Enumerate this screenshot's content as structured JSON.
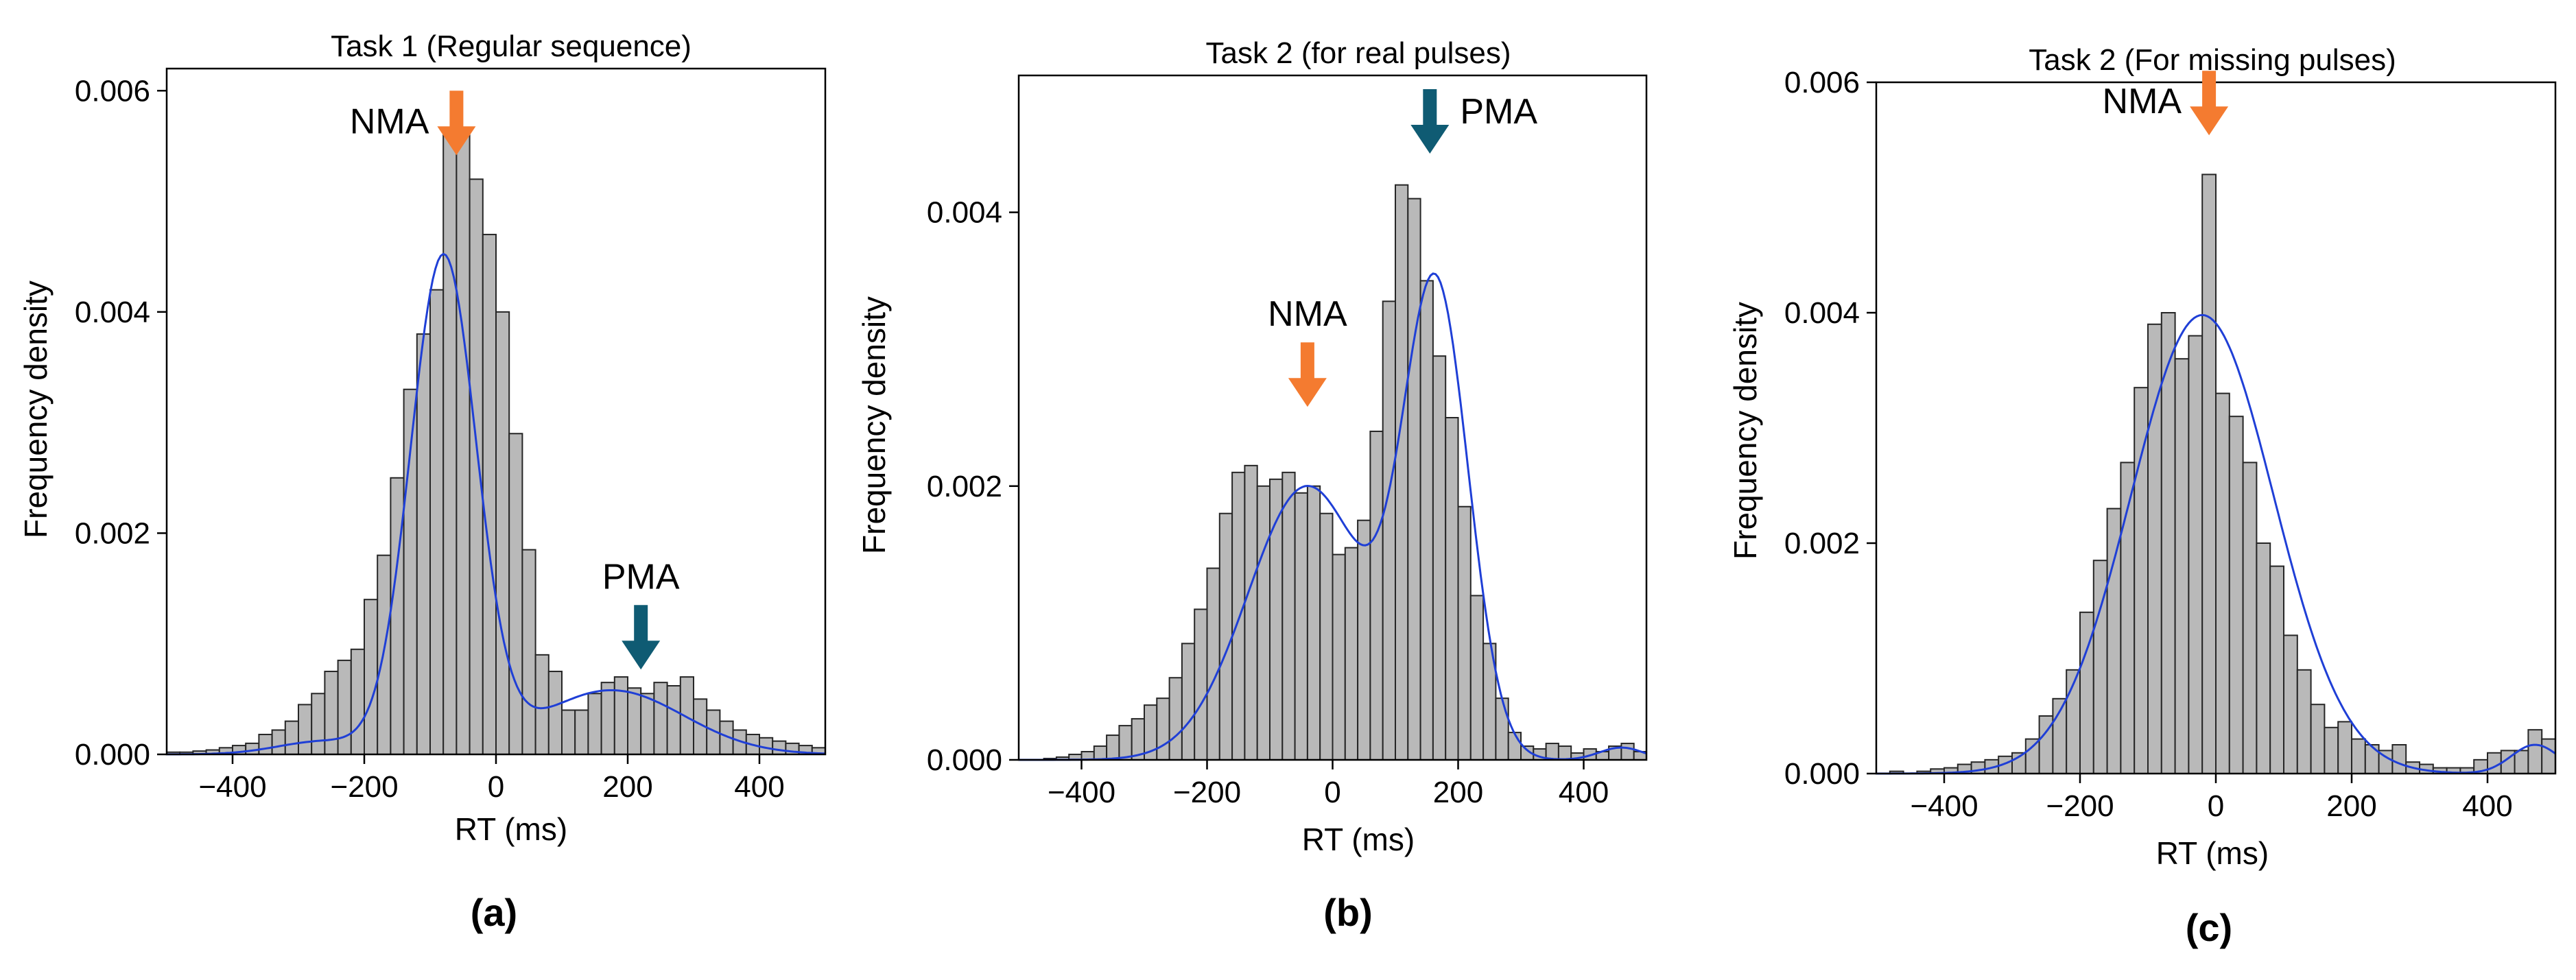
{
  "colors": {
    "nma": "#f47b30",
    "pma": "#0f5b73",
    "bar_fill": "#b9b9b9",
    "bar_edge": "#262626",
    "kde": "#1f3fd6"
  },
  "chart_data": [
    {
      "type": "bar",
      "panel_label": "(a)",
      "title": "Task 1 (Regular sequence)",
      "xlabel": "RT (ms)",
      "ylabel": "Frequency density",
      "xlim": [
        -500,
        500
      ],
      "ylim": [
        0,
        0.0062
      ],
      "xticks": [
        -400,
        -200,
        0,
        200,
        400
      ],
      "yticks": [
        0.0,
        0.002,
        0.004,
        0.006
      ],
      "ytick_labels": [
        "0.000",
        "0.002",
        "0.004",
        "0.006"
      ],
      "bin_width": 20,
      "bin_start": -500,
      "values": [
        2e-05,
        2e-05,
        3e-05,
        4e-05,
        6e-05,
        8e-05,
        0.0001,
        0.00018,
        0.00022,
        0.0003,
        0.00045,
        0.00055,
        0.00075,
        0.00085,
        0.00095,
        0.0014,
        0.0018,
        0.0025,
        0.0033,
        0.0038,
        0.0042,
        0.0056,
        0.00565,
        0.0052,
        0.0047,
        0.004,
        0.0029,
        0.00185,
        0.0009,
        0.00075,
        0.0004,
        0.0004,
        0.00055,
        0.00065,
        0.0007,
        0.0006,
        0.00055,
        0.00065,
        0.00062,
        0.0007,
        0.0005,
        0.0004,
        0.0003,
        0.00022,
        0.00018,
        0.00015,
        0.00012,
        0.0001,
        8e-05,
        6e-05
      ],
      "kde_peaks": [
        {
          "mu": -80,
          "sd": 50,
          "w": 0.00448
        },
        {
          "mu": 175,
          "sd": 110,
          "w": 0.00058
        },
        {
          "mu": -260,
          "sd": 70,
          "w": 0.00012
        }
      ],
      "annotations": [
        {
          "text": "NMA",
          "x": -60,
          "y": 0.006,
          "direction": "down",
          "color": "nma",
          "label_side": "left"
        },
        {
          "text": "PMA",
          "x": 220,
          "y": 0.00135,
          "direction": "down",
          "color": "pma",
          "label_side": "above"
        }
      ]
    },
    {
      "type": "bar",
      "panel_label": "(b)",
      "title": "Task 2 (for real pulses)",
      "xlabel": "RT (ms)",
      "ylabel": "Frequency density",
      "xlim": [
        -500,
        500
      ],
      "ylim": [
        0,
        0.005
      ],
      "xticks": [
        -400,
        -200,
        0,
        200,
        400
      ],
      "yticks": [
        0.0,
        0.002,
        0.004
      ],
      "ytick_labels": [
        "0.000",
        "0.002",
        "0.004"
      ],
      "bin_width": 20,
      "bin_start": -500,
      "values": [
        0.0,
        0.0,
        1e-05,
        2e-05,
        4e-05,
        6e-05,
        0.0001,
        0.00018,
        0.00025,
        0.0003,
        0.0004,
        0.00045,
        0.0006,
        0.00085,
        0.0011,
        0.0014,
        0.0018,
        0.0021,
        0.00215,
        0.002,
        0.00205,
        0.0021,
        0.00195,
        0.002,
        0.0018,
        0.0015,
        0.00155,
        0.00175,
        0.0024,
        0.00335,
        0.0042,
        0.0041,
        0.0035,
        0.00295,
        0.0025,
        0.00185,
        0.0012,
        0.00085,
        0.00045,
        0.0002,
        0.0001,
        8e-05,
        0.00012,
        0.0001,
        5e-05,
        8e-05,
        6e-05,
        0.0001,
        0.00012,
        6e-05
      ],
      "kde_peaks": [
        {
          "mu": -40,
          "sd": 95,
          "w": 0.002
        },
        {
          "mu": 165,
          "sd": 52,
          "w": 0.00335
        },
        {
          "mu": 460,
          "sd": 35,
          "w": 9e-05
        }
      ],
      "annotations": [
        {
          "text": "NMA",
          "x": -40,
          "y": 0.00305,
          "direction": "down",
          "color": "nma",
          "label_side": "above"
        },
        {
          "text": "PMA",
          "x": 155,
          "y": 0.0049,
          "direction": "down",
          "color": "pma",
          "label_side": "right"
        }
      ]
    },
    {
      "type": "bar",
      "panel_label": "(c)",
      "title": "Task 2 (For missing pulses)",
      "xlabel": "RT (ms)",
      "ylabel": "Frequency density",
      "xlim": [
        -500,
        500
      ],
      "ylim": [
        0,
        0.006
      ],
      "xticks": [
        -400,
        -200,
        0,
        200,
        400
      ],
      "yticks": [
        0.0,
        0.002,
        0.004,
        0.006
      ],
      "ytick_labels": [
        "0.000",
        "0.002",
        "0.004",
        "0.006"
      ],
      "bin_width": 20,
      "bin_start": -500,
      "values": [
        0.0,
        2e-05,
        0.0,
        2e-05,
        4e-05,
        5e-05,
        8e-05,
        0.0001,
        0.00012,
        0.00015,
        0.00018,
        0.0003,
        0.0005,
        0.00065,
        0.0009,
        0.0014,
        0.00185,
        0.0023,
        0.0027,
        0.00335,
        0.0039,
        0.004,
        0.0036,
        0.0038,
        0.0052,
        0.0033,
        0.0031,
        0.0027,
        0.002,
        0.0018,
        0.0012,
        0.0009,
        0.0006,
        0.0004,
        0.00045,
        0.0003,
        0.00025,
        0.0002,
        0.00025,
        0.0001,
        8e-05,
        5e-05,
        5e-05,
        5e-05,
        0.00012,
        0.00018,
        0.0002,
        0.0002,
        0.00038,
        0.0003
      ],
      "kde_peaks": [
        {
          "mu": -20,
          "sd": 105,
          "w": 0.00398
        },
        {
          "mu": 470,
          "sd": 35,
          "w": 0.00025
        }
      ],
      "annotations": [
        {
          "text": "NMA",
          "x": -10,
          "y": 0.0061,
          "direction": "down",
          "color": "nma",
          "label_side": "left"
        }
      ]
    }
  ]
}
